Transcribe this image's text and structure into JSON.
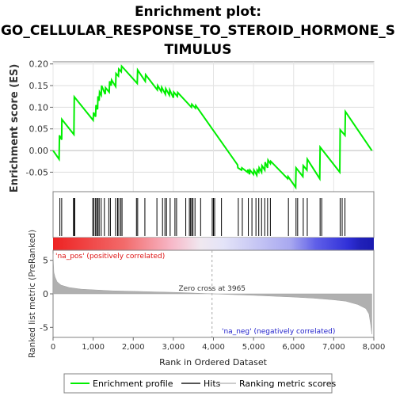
{
  "title_lines": [
    "Enrichment plot:",
    "GO_CELLULAR_RESPONSE_TO_STEROID_HORMONE_S",
    "TIMULUS"
  ],
  "chart_data": {
    "type": "line",
    "title": "Enrichment plot: GO_CELLULAR_RESPONSE_TO_STEROID_HORMONE_STIMULUS",
    "es_panel": {
      "ylabel": "Enrichment score (ES)",
      "ylim": [
        -0.095,
        0.205
      ],
      "yticks": [
        -0.05,
        0.0,
        0.05,
        0.1,
        0.15,
        0.2
      ],
      "ytick_labels": [
        "-0.05",
        "0.00",
        "0.05",
        "0.10",
        "0.15",
        "0.20"
      ],
      "grid": true,
      "series": [
        {
          "color": "#00ee00",
          "x": [
            0,
            150,
            160,
            215,
            220,
            520,
            530,
            1000,
            1010,
            1060,
            1070,
            1110,
            1120,
            1150,
            1160,
            1200,
            1210,
            1300,
            1310,
            1400,
            1410,
            1450,
            1460,
            1560,
            1570,
            1630,
            1640,
            1700,
            1710,
            2100,
            2110,
            2300,
            2310,
            2600,
            2610,
            2700,
            2710,
            2800,
            2810,
            2900,
            2910,
            3000,
            3010,
            3100,
            3110,
            3450,
            3460,
            3550,
            3560,
            4600,
            4610,
            4700,
            4710,
            4850,
            4860,
            4900,
            4910,
            5000,
            5010,
            5080,
            5090,
            5130,
            5140,
            5200,
            5210,
            5280,
            5290,
            5350,
            5360,
            5420,
            5430,
            5850,
            5860,
            6050,
            6060,
            6230,
            6240,
            6330,
            6340,
            6650,
            6660,
            7150,
            7160,
            7280,
            7290,
            7950
          ],
          "y": [
            0.0,
            -0.02,
            0.035,
            0.025,
            0.072,
            0.037,
            0.124,
            0.07,
            0.088,
            0.078,
            0.105,
            0.095,
            0.125,
            0.115,
            0.135,
            0.128,
            0.15,
            0.13,
            0.145,
            0.135,
            0.16,
            0.15,
            0.163,
            0.148,
            0.178,
            0.172,
            0.188,
            0.182,
            0.195,
            0.155,
            0.186,
            0.16,
            0.175,
            0.14,
            0.15,
            0.136,
            0.146,
            0.13,
            0.143,
            0.128,
            0.14,
            0.122,
            0.135,
            0.125,
            0.134,
            0.1,
            0.107,
            0.098,
            0.104,
            -0.033,
            -0.04,
            -0.045,
            -0.04,
            -0.05,
            -0.044,
            -0.055,
            -0.045,
            -0.055,
            -0.045,
            -0.057,
            -0.045,
            -0.05,
            -0.04,
            -0.05,
            -0.035,
            -0.045,
            -0.027,
            -0.04,
            -0.022,
            -0.03,
            -0.025,
            -0.065,
            -0.06,
            -0.085,
            -0.04,
            -0.06,
            -0.035,
            -0.045,
            -0.02,
            -0.065,
            0.008,
            -0.05,
            0.048,
            0.035,
            0.09,
            0.0
          ]
        }
      ]
    },
    "hits_panel": {
      "hit_positions": [
        170,
        215,
        510,
        525,
        540,
        990,
        1020,
        1060,
        1090,
        1120,
        1150,
        1200,
        1280,
        1390,
        1430,
        1560,
        1610,
        1640,
        1690,
        1720,
        2080,
        2110,
        2290,
        2590,
        2730,
        2790,
        2830,
        2920,
        3040,
        3080,
        3310,
        3400,
        3430,
        3460,
        3490,
        3540,
        3680,
        3970,
        4000,
        4030,
        4200,
        4620,
        4720,
        4870,
        4960,
        5060,
        5130,
        5200,
        5280,
        5350,
        5420,
        5870,
        6060,
        6100,
        6240,
        6340,
        6660,
        6700,
        7160,
        7210,
        7280
      ]
    },
    "ranked_panel": {
      "ylabel": "Ranked list metric (PreRanked)",
      "ylim": [
        -6.5,
        6.5
      ],
      "yticks": [
        -5,
        0,
        5
      ],
      "ytick_labels": [
        "-5",
        "0",
        "5"
      ],
      "xlabel": "Rank in Ordered Dataset",
      "xlim": [
        0,
        8000
      ],
      "xticks": [
        0,
        1000,
        2000,
        3000,
        4000,
        5000,
        6000,
        7000,
        8000
      ],
      "xtick_labels": [
        "0",
        "1,000",
        "2,000",
        "3,000",
        "4,000",
        "5,000",
        "6,000",
        "7,000",
        "8,000"
      ],
      "zero_cross": 3965,
      "zero_cross_label": "Zero cross at 3965",
      "pos_label": "'na_pos' (positively correlated)",
      "neg_label": "'na_neg' (negatively correlated)",
      "x": [
        0,
        20,
        50,
        100,
        200,
        400,
        700,
        1000,
        1500,
        2000,
        2500,
        3000,
        3500,
        3965,
        4500,
        5000,
        5500,
        6000,
        6500,
        7000,
        7300,
        7600,
        7800,
        7880,
        7920,
        7950
      ],
      "y": [
        6.0,
        3.2,
        2.5,
        1.8,
        1.3,
        0.95,
        0.7,
        0.6,
        0.45,
        0.38,
        0.3,
        0.22,
        0.12,
        0.0,
        -0.12,
        -0.22,
        -0.35,
        -0.48,
        -0.65,
        -0.9,
        -1.1,
        -1.6,
        -2.2,
        -3.0,
        -4.5,
        -6.0
      ]
    },
    "legend": {
      "placement": "bottom",
      "items": [
        "Enrichment profile",
        "Hits",
        "Ranking metric scores"
      ]
    }
  }
}
